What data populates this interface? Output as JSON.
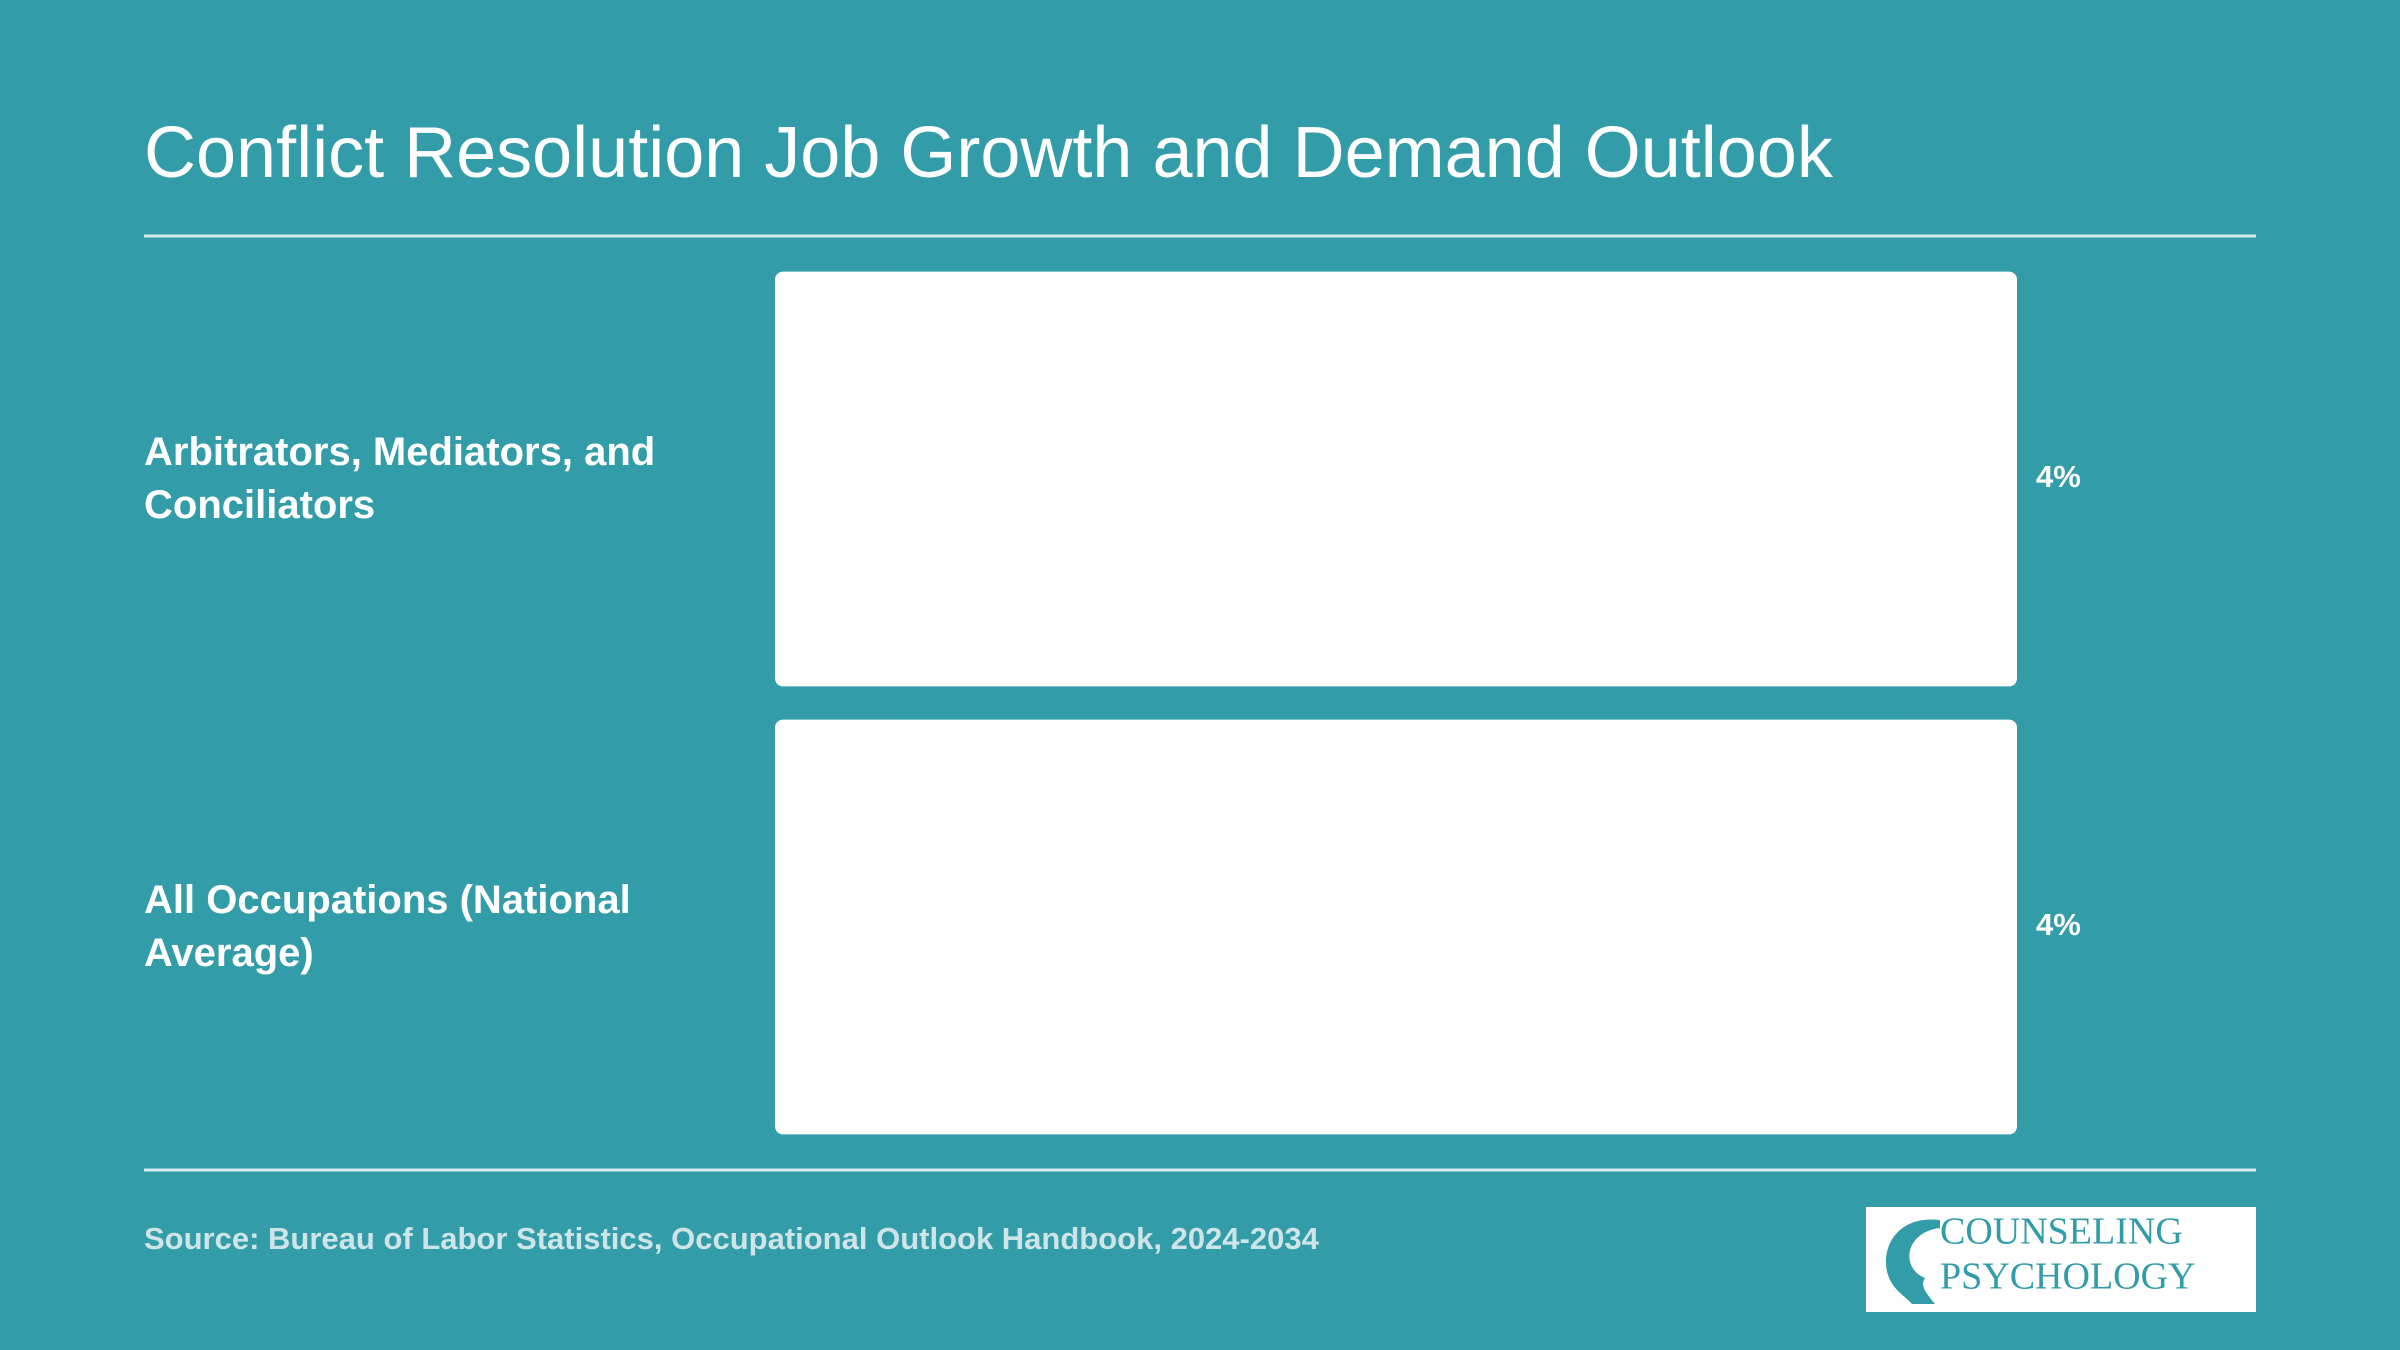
{
  "chart_data": {
    "type": "barh",
    "title": "Conflict Resolution Job Growth and Demand Outlook",
    "categories": [
      "Arbitrators, Mediators, and Conciliators",
      "All Occupations (National Average)"
    ],
    "values": [
      4,
      4
    ],
    "value_labels": [
      "4%",
      "4%"
    ],
    "color": "#ffffff",
    "xlim": [
      0,
      4
    ],
    "source": "Source: Bureau of Labor Statistics, Occupational Outlook Handbook, 2024-2034",
    "logo": [
      "COUNSELING",
      "PSYCHOLOGY"
    ]
  }
}
